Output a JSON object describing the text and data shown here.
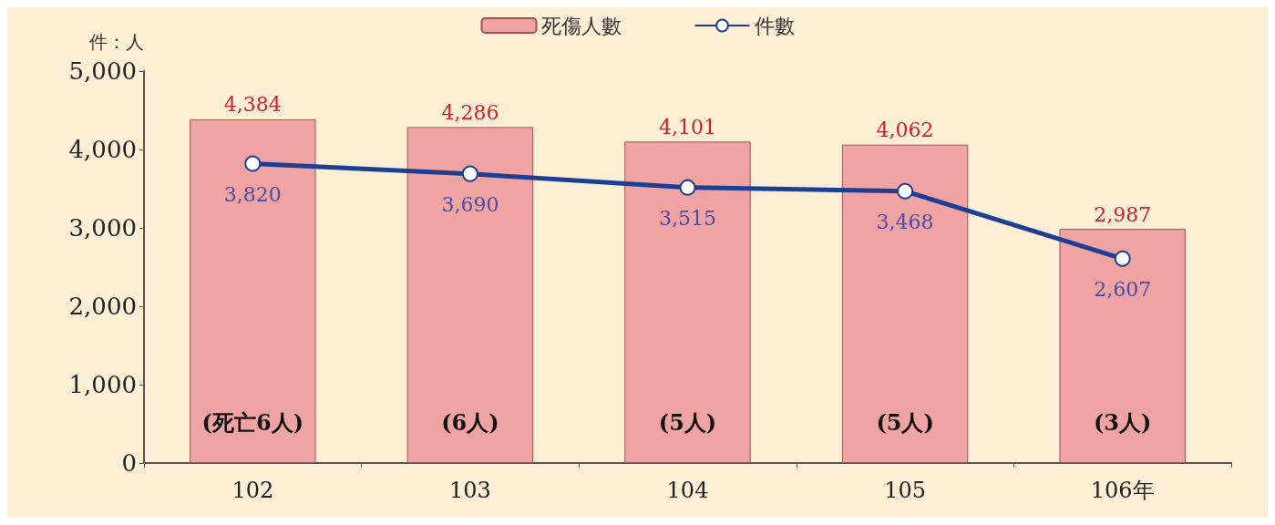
{
  "chart_data": {
    "type": "bar",
    "ylabel": "件：人",
    "categories": [
      "102",
      "103",
      "104",
      "105",
      "106年"
    ],
    "series": [
      {
        "name": "死傷人數",
        "color": "#f0a3a3",
        "values": [
          4384,
          4286,
          4101,
          4062,
          2987
        ],
        "value_labels": [
          "4,384",
          "4,286",
          "4,101",
          "4,062",
          "2,987"
        ]
      },
      {
        "name": "件數",
        "type": "line",
        "color": "#1c3f94",
        "values": [
          3820,
          3690,
          3515,
          3468,
          2607
        ],
        "value_labels": [
          "3,820",
          "3,690",
          "3,515",
          "3,468",
          "2,607"
        ]
      }
    ],
    "ylim": [
      0,
      5000
    ],
    "yticks": [
      0,
      {
        "value": 1000,
        "label": "1,000"
      },
      {
        "value": 2000,
        "label": "2,000"
      },
      {
        "value": 3000,
        "label": "3,000"
      },
      {
        "value": 4000,
        "label": "4,000"
      },
      {
        "value": 5000,
        "label": "5,000"
      }
    ],
    "grid": false,
    "legend": "top",
    "marker": "circle",
    "line_style": "solid",
    "annotations": [
      "(死亡6人)",
      "(6人)",
      "(5人)",
      "(5人)",
      "(3人)"
    ]
  }
}
